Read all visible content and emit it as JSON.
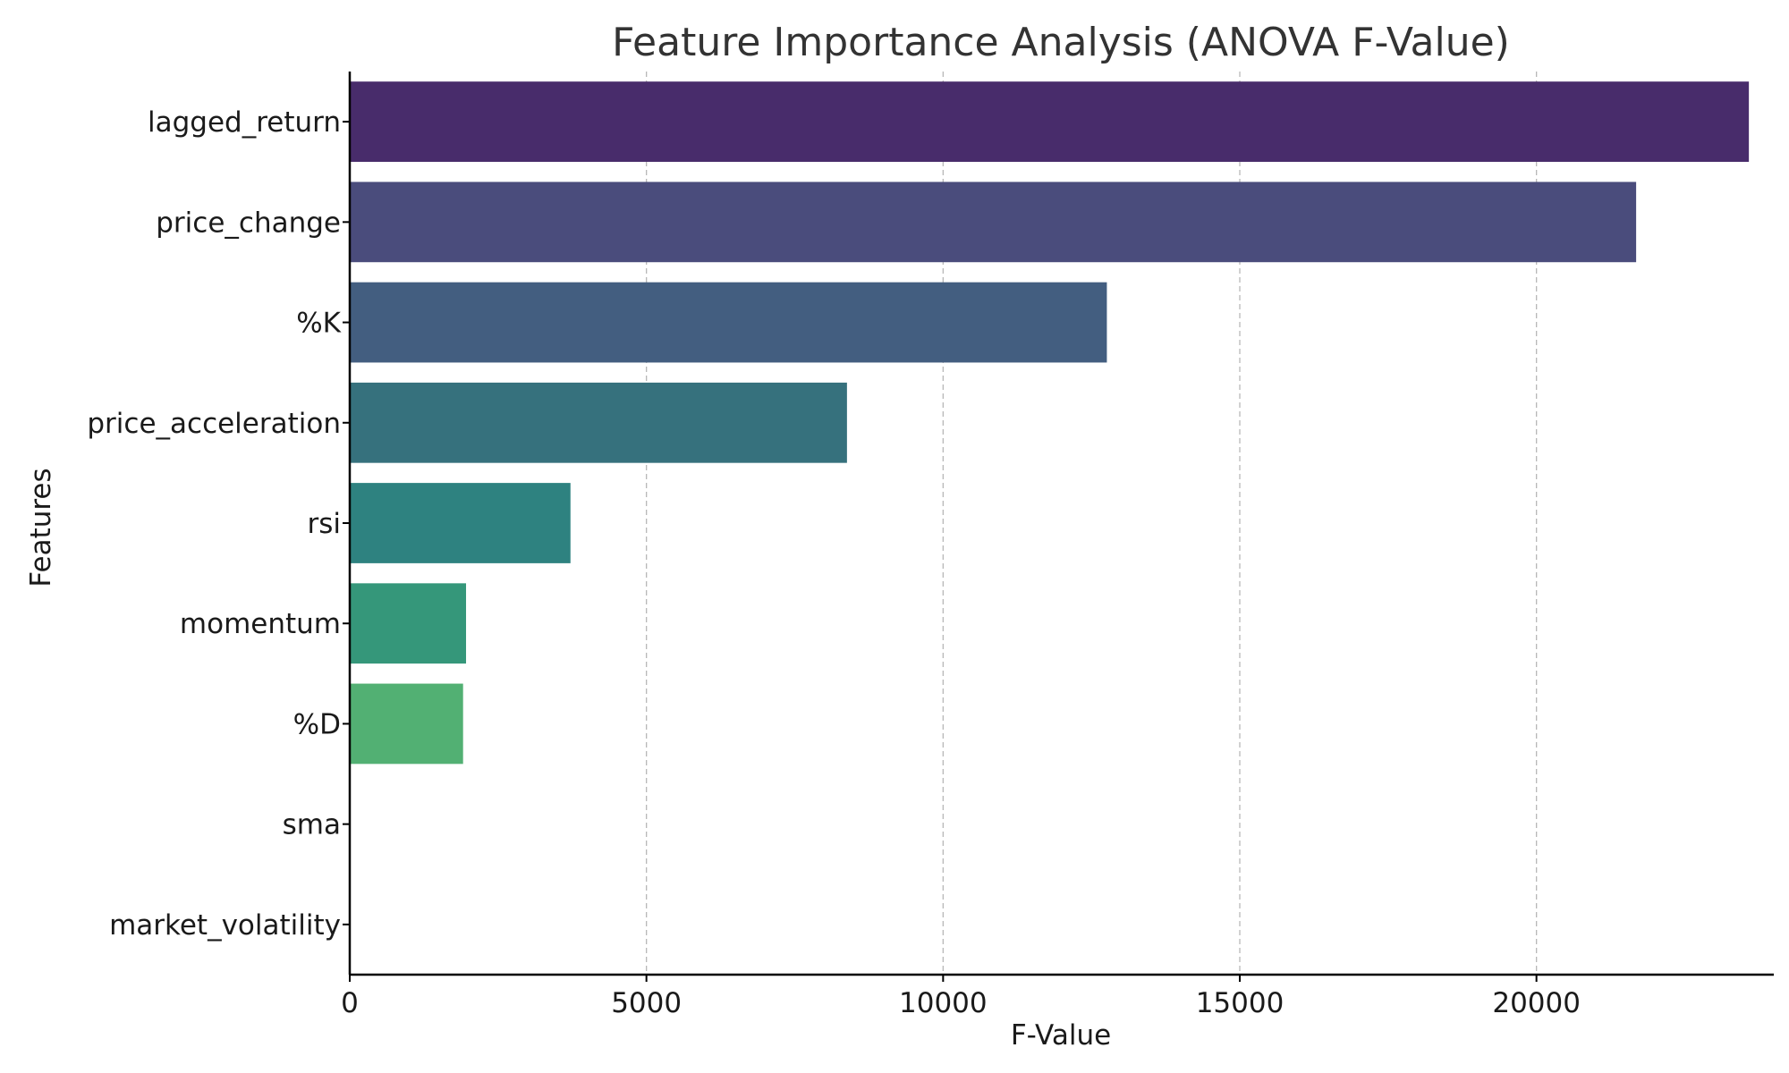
{
  "chart_data": {
    "type": "bar",
    "orientation": "horizontal",
    "title": "Feature Importance Analysis (ANOVA F-Value)",
    "xlabel": "F-Value",
    "ylabel": "Features",
    "categories": [
      "lagged_return",
      "price_change",
      "%K",
      "price_acceleration",
      "rsi",
      "momentum",
      "%D",
      "sma",
      "market_volatility"
    ],
    "values": [
      23580,
      21680,
      12760,
      8380,
      3720,
      1960,
      1910,
      0,
      0
    ],
    "colors": [
      "#482c6b",
      "#4a4c7c",
      "#435e80",
      "#36717d",
      "#2e8280",
      "#35977a",
      "#52b073",
      "#52b073",
      "#52b073"
    ],
    "xlim": [
      0,
      24000
    ],
    "xticks": [
      0,
      5000,
      10000,
      15000,
      20000
    ],
    "xtick_labels": [
      "0",
      "5000",
      "10000",
      "15000",
      "20000"
    ],
    "grid": "x-dashed",
    "legend": "none"
  }
}
